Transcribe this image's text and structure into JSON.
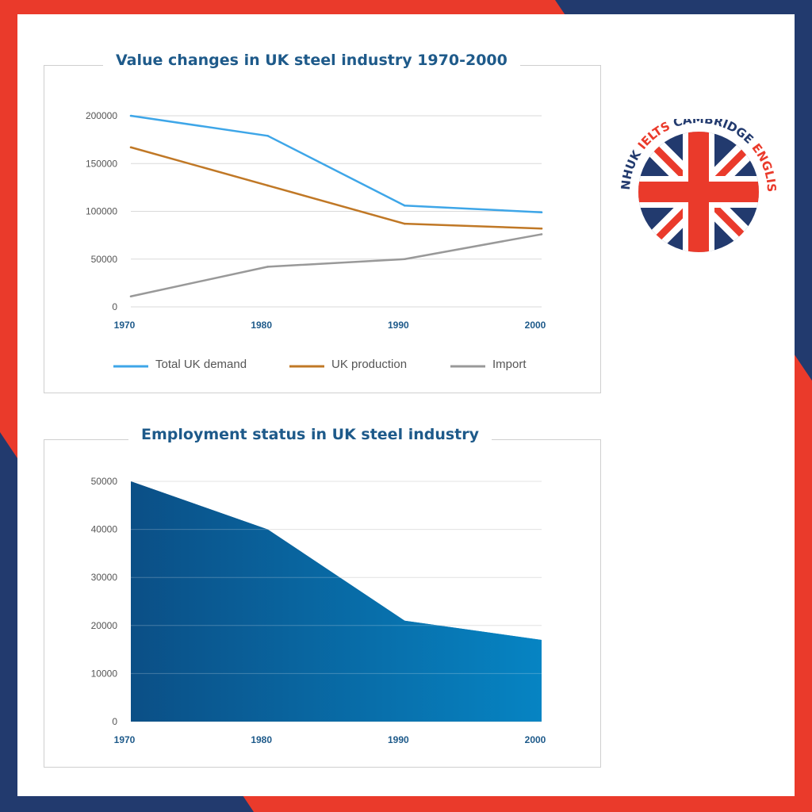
{
  "colors": {
    "frame_red": "#ea3a2b",
    "frame_navy": "#223a6e",
    "grid": "#d9d9d9",
    "title": "#1e5a8a",
    "demand": "#3ea6e8",
    "production": "#c07826",
    "import": "#999999",
    "area_left": "#0b4f86",
    "area_right": "#0684c3"
  },
  "logo": {
    "words": [
      "LINHUK",
      "IELTS",
      "CAMBRIDGE",
      "ENGLISH"
    ]
  },
  "chart_data": [
    {
      "type": "line",
      "title": "Value changes in UK steel industry 1970-2000",
      "x": [
        1970,
        1980,
        1990,
        2000
      ],
      "x_tick_labels": [
        "1970",
        "1980",
        "1990",
        "2000"
      ],
      "y_tick_labels": [
        "0",
        "50000",
        "100000",
        "150000",
        "200000"
      ],
      "ylim": [
        0,
        200000
      ],
      "grid": true,
      "legend_position": "bottom",
      "series": [
        {
          "name": "Total UK demand",
          "color_key": "demand",
          "values": [
            200000,
            179000,
            106000,
            99000
          ]
        },
        {
          "name": "UK production",
          "color_key": "production",
          "values": [
            167000,
            127000,
            87000,
            82000
          ]
        },
        {
          "name": "Import",
          "color_key": "import",
          "values": [
            11000,
            42000,
            50000,
            76000
          ]
        }
      ]
    },
    {
      "type": "area",
      "title": "Employment status in UK steel industry",
      "x": [
        1970,
        1980,
        1990,
        2000
      ],
      "x_tick_labels": [
        "1970",
        "1980",
        "1990",
        "2000"
      ],
      "y_tick_labels": [
        "0",
        "10000",
        "20000",
        "30000",
        "40000",
        "50000"
      ],
      "ylim": [
        0,
        50000
      ],
      "grid": true,
      "series": [
        {
          "values": [
            50000,
            40000,
            21000,
            17000
          ]
        }
      ]
    }
  ]
}
